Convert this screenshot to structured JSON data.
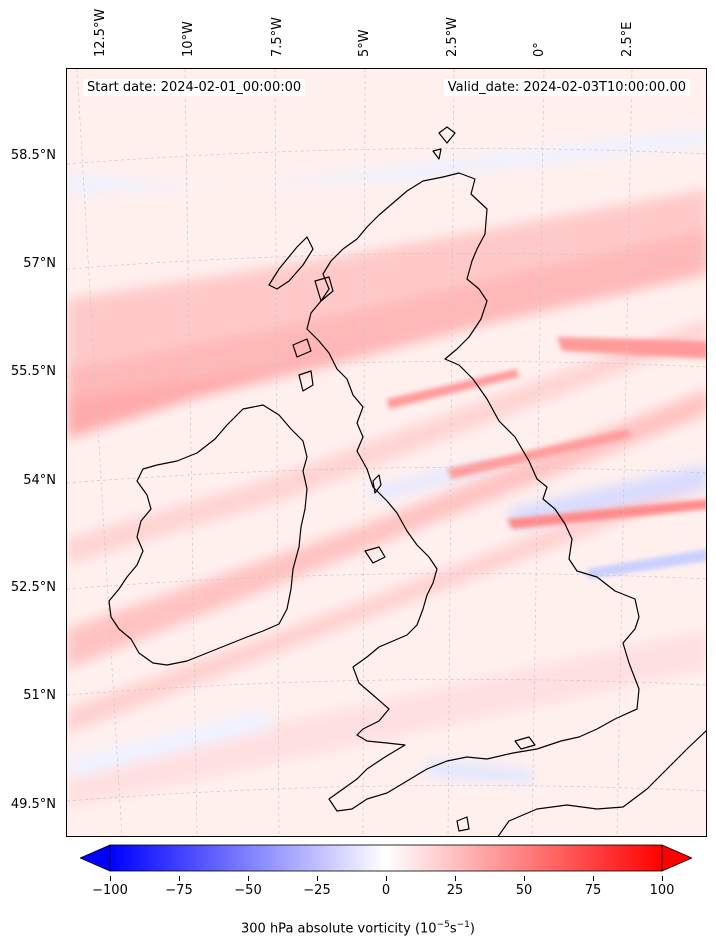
{
  "map": {
    "start_date_label": "Start date: 2024-02-01_00:00:00",
    "valid_date_label": "Valid_date: 2024-02-03T10:00:00.00",
    "lon_labels": [
      "12.5°W",
      "10°W",
      "7.5°W",
      "5°W",
      "2.5°W",
      "0°",
      "2.5°E"
    ],
    "lat_labels": [
      "58.5°N",
      "57°N",
      "55.5°N",
      "54°N",
      "52.5°N",
      "51°N",
      "49.5°N"
    ],
    "field": "300 hPa absolute vorticity",
    "colors": {
      "max": "#ff0000",
      "min": "#0000ff",
      "mid": "#ffffff",
      "coast": "#000000"
    }
  },
  "colorbar": {
    "ticks": [
      "−100",
      "−75",
      "−50",
      "−25",
      "0",
      "25",
      "50",
      "75",
      "100"
    ],
    "min": -100,
    "max": 100,
    "label_main": "300 hPa absolute vorticity (10",
    "label_exp1": "−5",
    "label_mid": "s",
    "label_exp2": "−1",
    "label_end": ")"
  }
}
